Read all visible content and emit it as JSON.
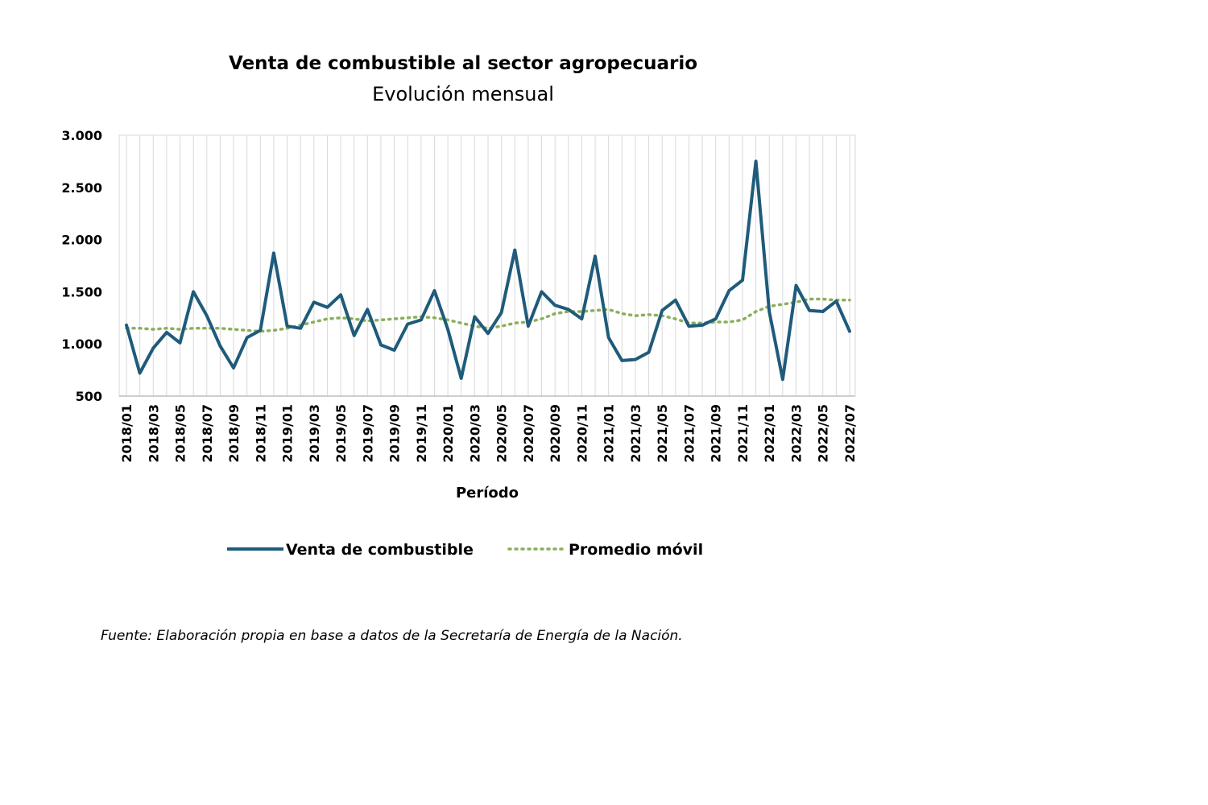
{
  "chart_data": {
    "type": "line",
    "title": "Venta de combustible al sector agropecuario",
    "subtitle": "Evolución mensual",
    "xlabel": "Período",
    "ylabel": "",
    "ylim": [
      500,
      3000
    ],
    "yticks": [
      "3.000",
      "2.500",
      "2.000",
      "1.500",
      "1.000",
      "500"
    ],
    "ytick_values": [
      3000,
      2500,
      2000,
      1500,
      1000,
      500
    ],
    "grid": "vertical",
    "legend_position": "bottom",
    "x": [
      "2018/01",
      "2018/02",
      "2018/03",
      "2018/04",
      "2018/05",
      "2018/06",
      "2018/07",
      "2018/08",
      "2018/09",
      "2018/10",
      "2018/11",
      "2018/12",
      "2019/01",
      "2019/02",
      "2019/03",
      "2019/04",
      "2019/05",
      "2019/06",
      "2019/07",
      "2019/08",
      "2019/09",
      "2019/10",
      "2019/11",
      "2019/12",
      "2020/01",
      "2020/02",
      "2020/03",
      "2020/04",
      "2020/05",
      "2020/06",
      "2020/07",
      "2020/08",
      "2020/09",
      "2020/10",
      "2020/11",
      "2020/12",
      "2021/01",
      "2021/02",
      "2021/03",
      "2021/04",
      "2021/05",
      "2021/06",
      "2021/07",
      "2021/08",
      "2021/09",
      "2021/10",
      "2021/11",
      "2021/12",
      "2022/01",
      "2022/02",
      "2022/03",
      "2022/04",
      "2022/05",
      "2022/06",
      "2022/07"
    ],
    "xtick_labels": [
      "2018/01",
      "2018/03",
      "2018/05",
      "2018/07",
      "2018/09",
      "2018/11",
      "2019/01",
      "2019/03",
      "2019/05",
      "2019/07",
      "2019/09",
      "2019/11",
      "2020/01",
      "2020/03",
      "2020/05",
      "2020/07",
      "2020/09",
      "2020/11",
      "2021/01",
      "2021/03",
      "2021/05",
      "2021/07",
      "2021/09",
      "2021/11",
      "2022/01",
      "2022/03",
      "2022/05",
      "2022/07"
    ],
    "series": [
      {
        "name": "Venta de combustible",
        "color": "#1f5b7a",
        "style": "solid",
        "values": [
          1180,
          720,
          960,
          1110,
          1010,
          1500,
          1270,
          980,
          770,
          1060,
          1130,
          1870,
          1170,
          1150,
          1400,
          1350,
          1470,
          1080,
          1330,
          990,
          940,
          1190,
          1230,
          1510,
          1140,
          670,
          1260,
          1100,
          1300,
          1900,
          1170,
          1500,
          1370,
          1330,
          1240,
          1840,
          1060,
          840,
          850,
          920,
          1320,
          1420,
          1170,
          1180,
          1240,
          1510,
          1610,
          2750,
          1310,
          660,
          1560,
          1320,
          1310,
          1410,
          1120
        ]
      },
      {
        "name": "Promedio móvil",
        "color": "#8aaf5c",
        "style": "dotted",
        "values": [
          1150,
          1150,
          1140,
          1150,
          1140,
          1150,
          1150,
          1150,
          1140,
          1130,
          1120,
          1130,
          1150,
          1180,
          1210,
          1240,
          1250,
          1240,
          1220,
          1230,
          1240,
          1250,
          1260,
          1250,
          1230,
          1200,
          1170,
          1150,
          1170,
          1200,
          1210,
          1240,
          1290,
          1310,
          1310,
          1320,
          1330,
          1290,
          1270,
          1280,
          1270,
          1240,
          1200,
          1200,
          1210,
          1210,
          1230,
          1310,
          1360,
          1380,
          1400,
          1430,
          1430,
          1420,
          1420
        ]
      }
    ],
    "source": "Fuente: Elaboración propia en base a datos de la Secretaría de Energía de la Nación."
  }
}
